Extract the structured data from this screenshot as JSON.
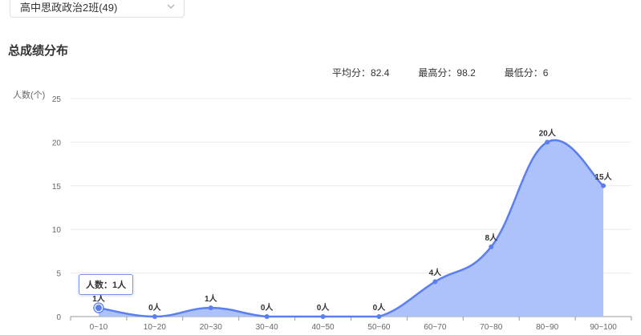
{
  "class_select": {
    "value": "高中思政政治2班(49)"
  },
  "section_title": "总成绩分布",
  "stats": [
    {
      "label": "平均分：",
      "value": "82.4"
    },
    {
      "label": "最高分：",
      "value": "98.2"
    },
    {
      "label": "最低分：",
      "value": "6"
    }
  ],
  "tooltip": {
    "label": "人数：",
    "value": "1人"
  },
  "colors": {
    "line": "#5b7ef0",
    "area": "#a9bffb",
    "grid": "#ececec",
    "axis": "#999999",
    "text": "#666666"
  },
  "chart_data": {
    "type": "area",
    "categories": [
      "0~10",
      "10~20",
      "20~30",
      "30~40",
      "40~50",
      "50~60",
      "60~70",
      "70~80",
      "80~90",
      "90~100"
    ],
    "series": [
      {
        "values": [
          1,
          0,
          1,
          0,
          0,
          0,
          4,
          8,
          20,
          15
        ]
      }
    ],
    "data_labels": [
      "1人",
      "0人",
      "1人",
      "0人",
      "0人",
      "0人",
      "4人",
      "8人",
      "20人",
      "15人"
    ],
    "ylabel": "人数(个)",
    "ylim": [
      0,
      25
    ],
    "yticks": [
      0,
      5,
      10,
      15,
      20,
      25
    ],
    "grid": true,
    "smooth": true
  }
}
